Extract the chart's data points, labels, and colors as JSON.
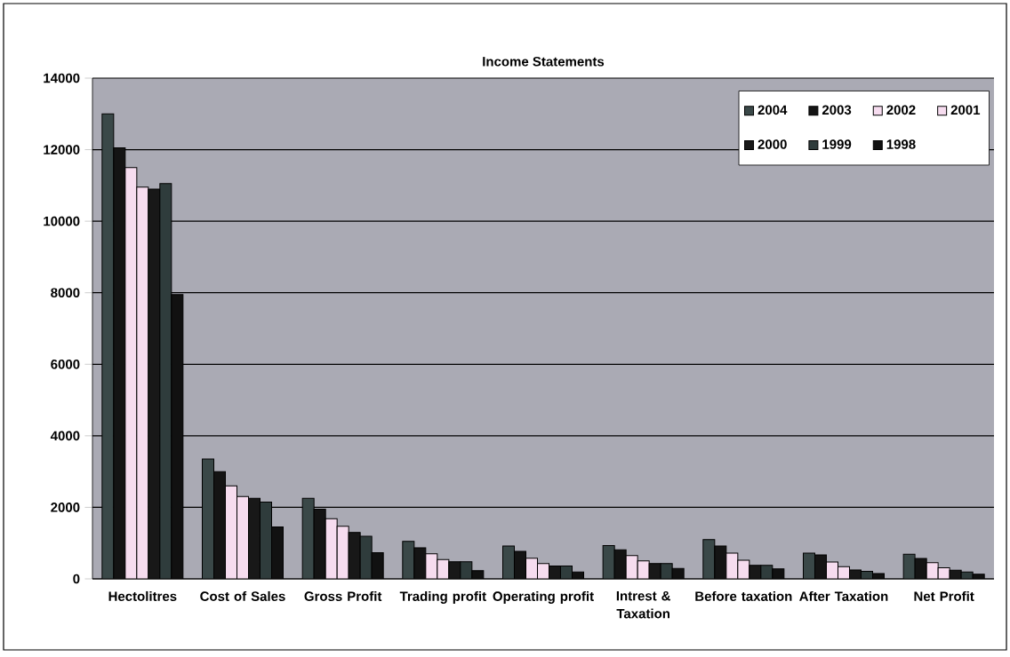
{
  "chart_data": {
    "type": "bar",
    "title": "Income Statements",
    "categories": [
      "Hectolitres",
      "Cost of Sales",
      "Gross Profit",
      "Trading profit",
      "Operating profit",
      "Intrest & Taxation",
      "Before taxation",
      "After Taxation",
      "Net Profit"
    ],
    "series": [
      {
        "name": "2004",
        "color": "#3a4848",
        "values": [
          13000,
          3350,
          2250,
          1050,
          920,
          930,
          1100,
          720,
          690
        ]
      },
      {
        "name": "2003",
        "color": "#141414",
        "values": [
          12050,
          3000,
          1950,
          870,
          770,
          810,
          920,
          670,
          570
        ]
      },
      {
        "name": "2002",
        "color": "#f6dcef",
        "values": [
          11500,
          2600,
          1680,
          700,
          580,
          650,
          720,
          470,
          450
        ]
      },
      {
        "name": "2001",
        "color": "#f6dcef",
        "values": [
          10950,
          2300,
          1470,
          540,
          430,
          500,
          520,
          340,
          310
        ]
      },
      {
        "name": "2000",
        "color": "#181818",
        "values": [
          10900,
          2250,
          1300,
          480,
          360,
          430,
          380,
          250,
          240
        ]
      },
      {
        "name": "1999",
        "color": "#2f3c3c",
        "values": [
          11050,
          2150,
          1190,
          480,
          360,
          430,
          380,
          210,
          190
        ]
      },
      {
        "name": "1998",
        "color": "#111111",
        "values": [
          7950,
          1450,
          730,
          230,
          190,
          290,
          280,
          150,
          130
        ]
      }
    ],
    "ylim": [
      0,
      14000
    ],
    "yticks": [
      0,
      2000,
      4000,
      6000,
      8000,
      10000,
      12000,
      14000
    ],
    "grid": "y",
    "legend": "top right"
  }
}
